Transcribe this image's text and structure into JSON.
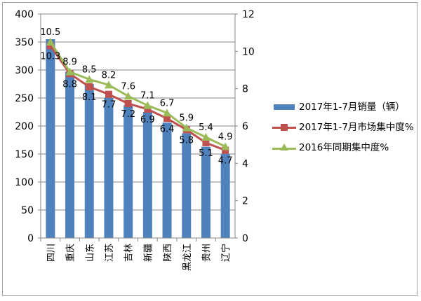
{
  "chart_data": {
    "type": "bar",
    "categories": [
      "四川",
      "重庆",
      "山东",
      "江苏",
      "吉林",
      "新疆",
      "陕西",
      "黑龙江",
      "贵州",
      "辽宁"
    ],
    "series": [
      {
        "name": "2017年1-7月销量（辆）",
        "type": "bar",
        "axis": "left",
        "color": "#4f81bd",
        "values": [
          355,
          297,
          275,
          250,
          237,
          225,
          206,
          187,
          163,
          150
        ]
      },
      {
        "name": "2017年1-7月市场集中度%",
        "type": "line",
        "axis": "right",
        "color": "#c0504d",
        "marker": "square",
        "values": [
          10.3,
          8.8,
          8.1,
          7.7,
          7.2,
          6.9,
          6.4,
          5.8,
          5.1,
          4.7
        ]
      },
      {
        "name": "2016年同期集中度%",
        "type": "line",
        "axis": "right",
        "color": "#9bbb59",
        "marker": "triangle",
        "values": [
          10.5,
          8.9,
          8.5,
          8.2,
          7.6,
          7.1,
          6.7,
          5.9,
          5.4,
          4.9
        ]
      }
    ],
    "left_axis": {
      "range": [
        0,
        400
      ],
      "ticks": [
        "0",
        "50",
        "100",
        "150",
        "200",
        "250",
        "300",
        "350",
        "400"
      ]
    },
    "right_axis": {
      "range": [
        0,
        12
      ],
      "ticks": [
        "0",
        "2",
        "4",
        "6",
        "8",
        "10",
        "12"
      ]
    },
    "grid": true,
    "legend_position": "right",
    "title": "",
    "xlabel": "",
    "ylabel": ""
  }
}
